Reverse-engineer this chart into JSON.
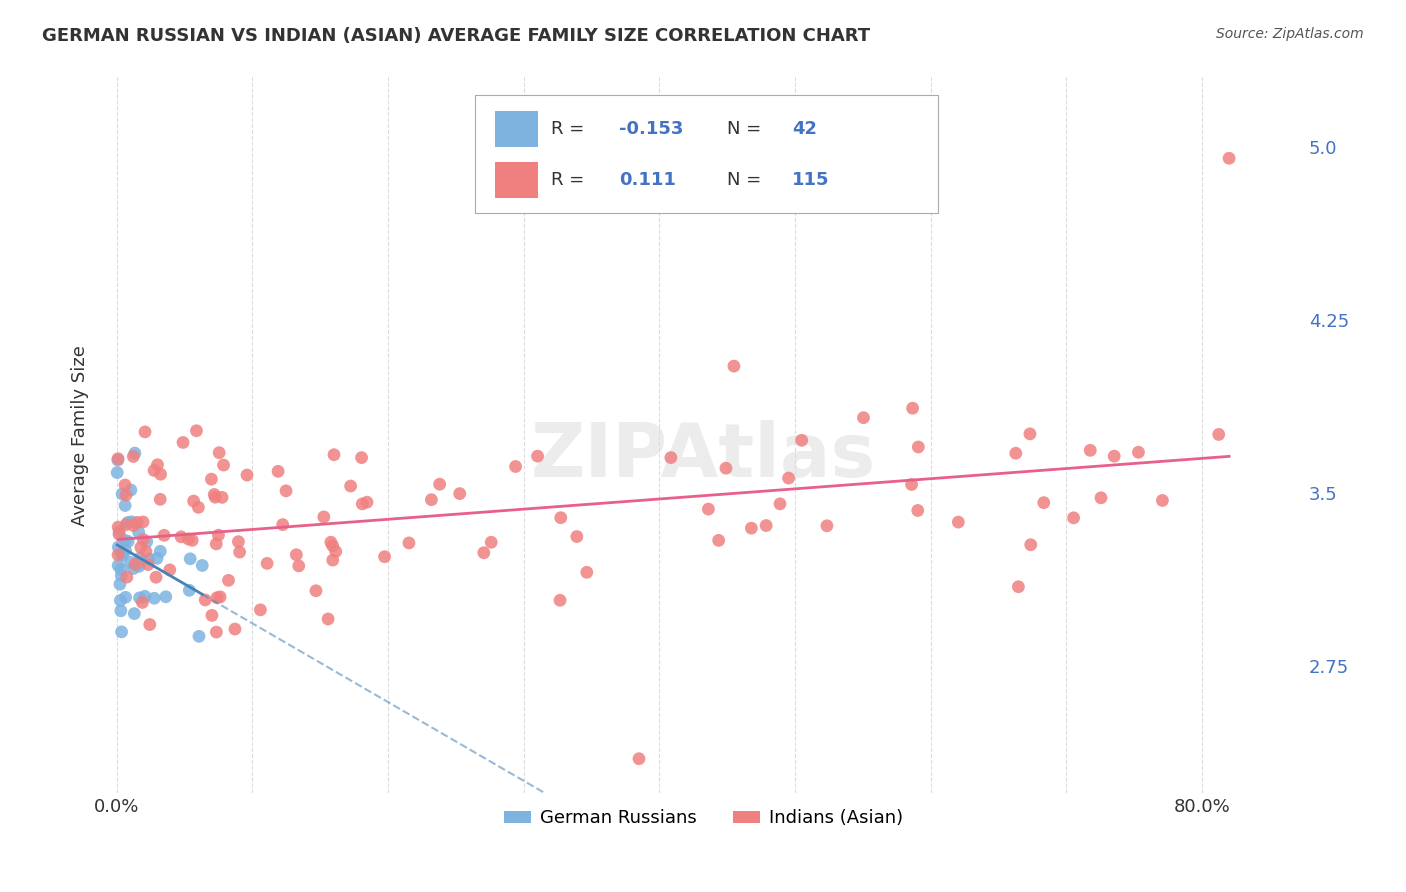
{
  "title": "GERMAN RUSSIAN VS INDIAN (ASIAN) AVERAGE FAMILY SIZE CORRELATION CHART",
  "source": "Source: ZipAtlas.com",
  "ylabel": "Average Family Size",
  "watermark": "ZIPAtlas",
  "legend_label1": "German Russians",
  "legend_label2": "Indians (Asian)",
  "r1": -0.153,
  "n1": 42,
  "r2": 0.111,
  "n2": 115,
  "color_blue": "#7EB3E0",
  "color_pink": "#F08080",
  "color_blue_line": "#4682B4",
  "color_pink_line": "#E8608A",
  "yticks": [
    2.75,
    3.5,
    4.25,
    5.0
  ],
  "xtick_positions": [
    0.0,
    0.1,
    0.2,
    0.3,
    0.4,
    0.5,
    0.6,
    0.7,
    0.8
  ],
  "xticklabels": [
    "0.0%",
    "",
    "",
    "",
    "",
    "",
    "",
    "",
    "80.0%"
  ]
}
